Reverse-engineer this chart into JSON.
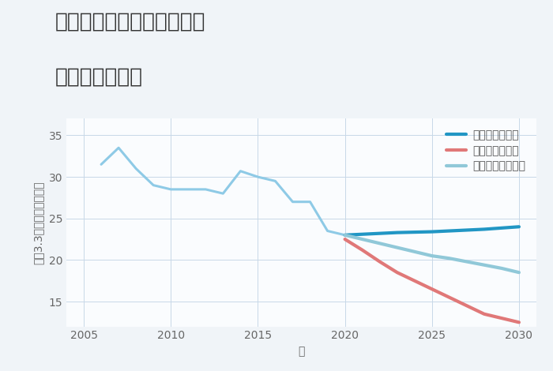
{
  "title_line1": "埼玉県南埼玉郡宮代町東の",
  "title_line2": "土地の価格推移",
  "xlabel": "年",
  "ylabel": "坪（3.3㎡）単価（万円）",
  "background_color": "#f0f4f8",
  "plot_bg_color": "#fafcfe",
  "grid_color": "#c8d8e8",
  "historical": {
    "years": [
      2006,
      2007,
      2008,
      2009,
      2010,
      2011,
      2012,
      2013,
      2014,
      2015,
      2016,
      2017,
      2018,
      2019,
      2020
    ],
    "values": [
      31.5,
      33.5,
      31.0,
      29.0,
      28.5,
      28.5,
      28.5,
      28.0,
      30.7,
      30.0,
      29.5,
      27.0,
      27.0,
      23.5,
      23.0
    ],
    "color": "#8ecae6",
    "linewidth": 2.2
  },
  "good_scenario": {
    "years": [
      2020,
      2021,
      2022,
      2023,
      2024,
      2025,
      2026,
      2027,
      2028,
      2029,
      2030
    ],
    "values": [
      23.0,
      23.1,
      23.2,
      23.3,
      23.35,
      23.4,
      23.5,
      23.6,
      23.7,
      23.85,
      24.0
    ],
    "color": "#2196c4",
    "linewidth": 3.0,
    "label": "グッドシナリオ"
  },
  "bad_scenario": {
    "years": [
      2020,
      2021,
      2022,
      2023,
      2024,
      2025,
      2026,
      2027,
      2028,
      2029,
      2030
    ],
    "values": [
      22.5,
      21.2,
      19.8,
      18.5,
      17.5,
      16.5,
      15.5,
      14.5,
      13.5,
      13.0,
      12.5
    ],
    "color": "#e07878",
    "linewidth": 3.0,
    "label": "バッドシナリオ"
  },
  "normal_scenario": {
    "years": [
      2020,
      2021,
      2022,
      2023,
      2024,
      2025,
      2026,
      2027,
      2028,
      2029,
      2030
    ],
    "values": [
      23.0,
      22.5,
      22.0,
      21.5,
      21.0,
      20.5,
      20.2,
      19.8,
      19.4,
      19.0,
      18.5
    ],
    "color": "#90c8d8",
    "linewidth": 3.0,
    "label": "ノーマルシナリオ"
  },
  "ylim": [
    12,
    37
  ],
  "yticks": [
    15,
    20,
    25,
    30,
    35
  ],
  "xlim": [
    2004.0,
    2031.0
  ],
  "xticks": [
    2005,
    2010,
    2015,
    2020,
    2025,
    2030
  ],
  "title_fontsize": 19,
  "axis_label_fontsize": 10,
  "tick_fontsize": 10,
  "legend_fontsize": 10
}
